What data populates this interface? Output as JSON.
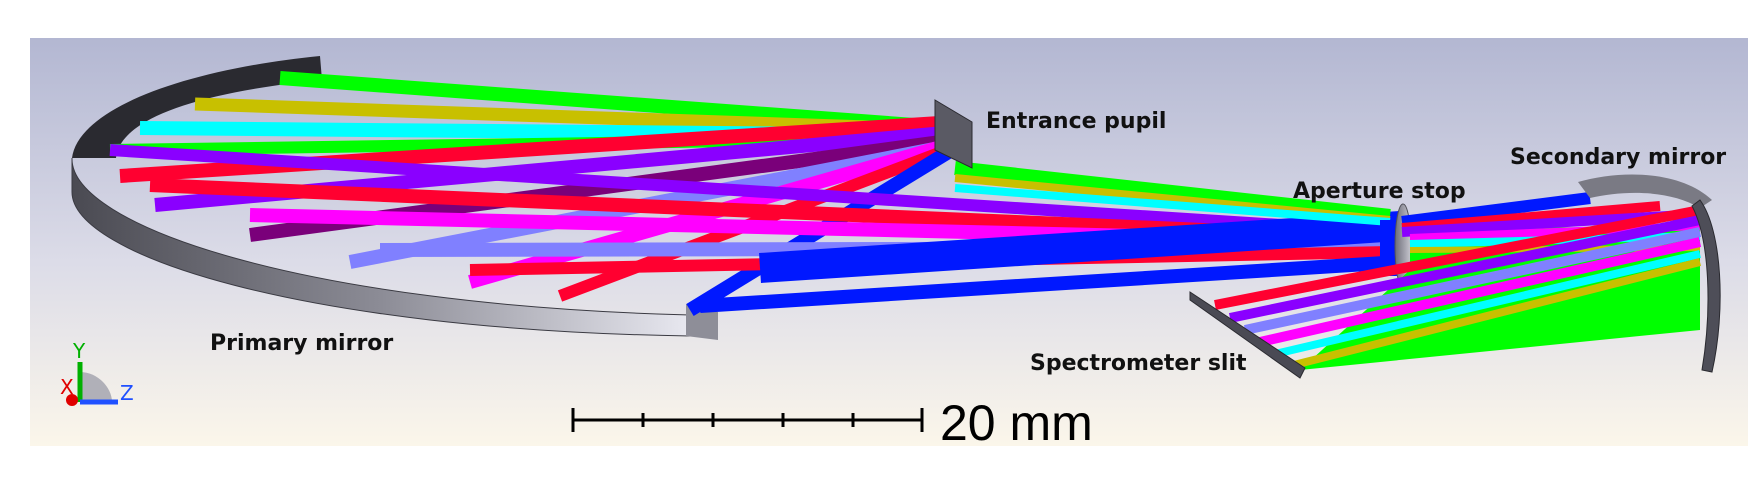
{
  "labels": {
    "entrance_pupil": "Entrance pupil",
    "secondary_mirror": "Secondary mirror",
    "aperture_stop": "Aperture stop",
    "primary_mirror": "Primary mirror",
    "spectrometer_slit": "Spectrometer slit"
  },
  "scale_bar": {
    "label": "20 mm"
  },
  "axes_triad": {
    "y": "Y",
    "x": "X",
    "z": "Z"
  },
  "ray_colors": {
    "green": "#00ff00",
    "red": "#ff0030",
    "blue": "#0018ff",
    "magenta": "#ff00ff",
    "purple": "#8a00ff",
    "dark_purple": "#7a007a",
    "light_blue": "#8080ff",
    "cyan": "#00ffff",
    "yellow": "#c8c000"
  }
}
